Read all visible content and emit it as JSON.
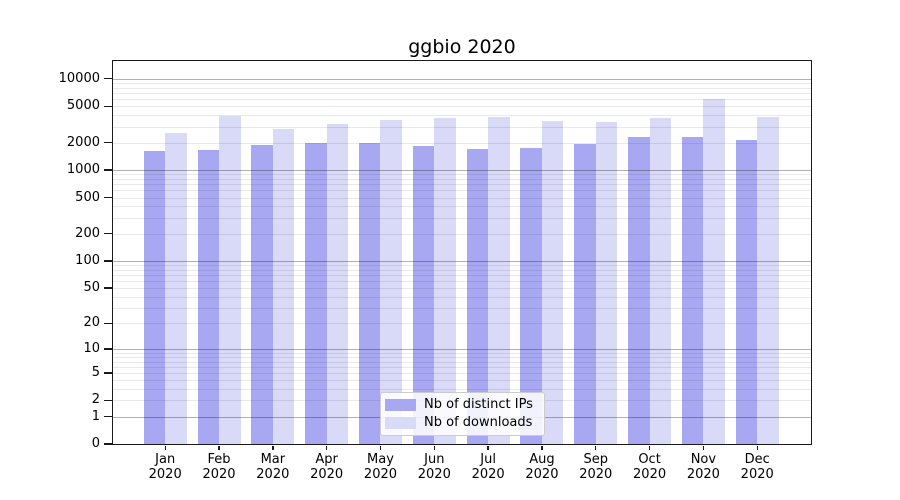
{
  "chart_data": {
    "type": "bar",
    "title": "ggbio 2020",
    "categories": [
      "Jan",
      "Feb",
      "Mar",
      "Apr",
      "May",
      "Jun",
      "Jul",
      "Aug",
      "Sep",
      "Oct",
      "Nov",
      "Dec"
    ],
    "year": "2020",
    "series": [
      {
        "name": "Nb of distinct IPs",
        "color": "#a8a8f2",
        "values": [
          1610,
          1660,
          1890,
          1970,
          1990,
          1820,
          1720,
          1750,
          1920,
          2290,
          2320,
          2150
        ]
      },
      {
        "name": "Nb of downloads",
        "color": "#d9d9f8",
        "values": [
          2530,
          3920,
          2850,
          3200,
          3570,
          3690,
          3820,
          3480,
          3360,
          3720,
          6010,
          3820
        ]
      }
    ],
    "y_axis": {
      "scale": "log1p",
      "tick_values": [
        10000,
        5000,
        2000,
        1000,
        500,
        200,
        100,
        50,
        20,
        10,
        5,
        2,
        1,
        0
      ],
      "major_grid_values": [
        1,
        10,
        100,
        1000,
        10000
      ],
      "ylim_top": 15600
    },
    "grid": true,
    "legend": {
      "position": "lower-center"
    }
  }
}
